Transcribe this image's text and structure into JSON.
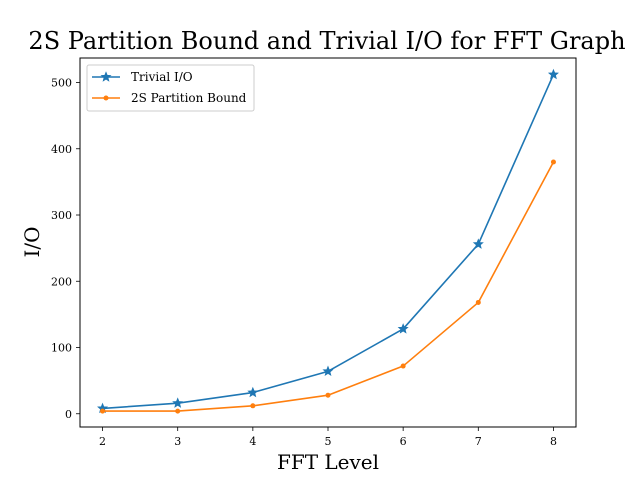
{
  "chart_data": {
    "type": "line",
    "title": "2S Partition Bound and Trivial I/O for FFT Graph",
    "xlabel": "FFT Level",
    "ylabel": "I/O",
    "x": [
      2,
      3,
      4,
      5,
      6,
      7,
      8
    ],
    "xlim": [
      1.7,
      8.3
    ],
    "ylim": [
      -20,
      537
    ],
    "xticks": [
      2,
      3,
      4,
      5,
      6,
      7,
      8
    ],
    "yticks": [
      0,
      100,
      200,
      300,
      400,
      500
    ],
    "grid": false,
    "legend_position": "top-left",
    "series": [
      {
        "name": "Trivial I/O",
        "color": "#1f77b4",
        "marker": "star",
        "values": [
          8,
          16,
          32,
          64,
          128,
          256,
          512
        ]
      },
      {
        "name": "2S Partition Bound",
        "color": "#ff7f0e",
        "marker": "circle",
        "values": [
          4,
          4,
          12,
          28,
          72,
          168,
          380
        ]
      }
    ]
  }
}
